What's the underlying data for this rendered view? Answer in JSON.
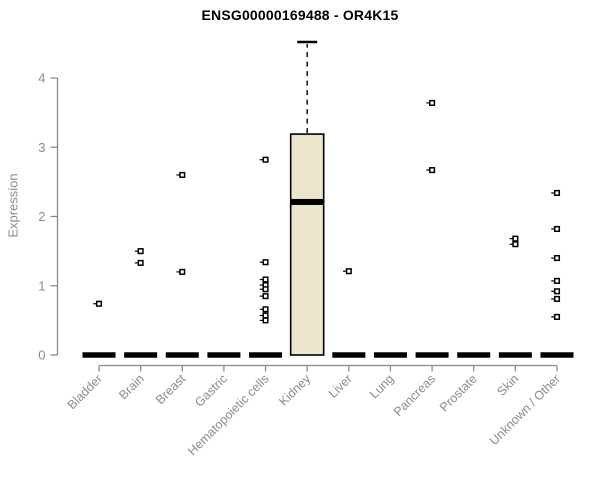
{
  "title": "ENSG00000169488 - OR4K15",
  "colors": {
    "axis": "#8b8b8b",
    "tick_label": "#8b8b8b",
    "title_ink": "#000000",
    "box_fill": "#ebe5cb",
    "box_stroke": "#000000",
    "point_stroke": "#000000",
    "background": "#ffffff"
  },
  "chart_data": {
    "type": "boxplot",
    "title": "ENSG00000169488 - OR4K15",
    "ylabel": "Expression",
    "xlabel": "",
    "ylim": [
      0,
      4.6
    ],
    "yticks": [
      0,
      1,
      2,
      3,
      4
    ],
    "grid": "off",
    "legend": "none",
    "categories": [
      "Bladder",
      "Brain",
      "Breast",
      "Gastric",
      "Hematopoietic cells",
      "Kidney",
      "Liver",
      "Lung",
      "Pancreas",
      "Prostate",
      "Skin",
      "Unknown / Other"
    ],
    "boxes": [
      {
        "category": "Bladder",
        "q1": 0,
        "median": 0,
        "q3": 0,
        "whisker_low": 0,
        "whisker_high": 0,
        "outliers": [
          0.74
        ]
      },
      {
        "category": "Brain",
        "q1": 0,
        "median": 0,
        "q3": 0,
        "whisker_low": 0,
        "whisker_high": 0,
        "outliers": [
          1.5,
          1.33
        ]
      },
      {
        "category": "Breast",
        "q1": 0,
        "median": 0,
        "q3": 0,
        "whisker_low": 0,
        "whisker_high": 0,
        "outliers": [
          2.6,
          1.2
        ]
      },
      {
        "category": "Gastric",
        "q1": 0,
        "median": 0,
        "q3": 0,
        "whisker_low": 0,
        "whisker_high": 0,
        "outliers": []
      },
      {
        "category": "Hematopoietic cells",
        "q1": 0,
        "median": 0,
        "q3": 0,
        "whisker_low": 0,
        "whisker_high": 0,
        "outliers": [
          2.82,
          1.34,
          1.09,
          1.01,
          0.95,
          0.85,
          0.66,
          0.57,
          0.5
        ]
      },
      {
        "category": "Kidney",
        "q1": 0,
        "median": 2.21,
        "q3": 3.19,
        "whisker_low": 0,
        "whisker_high": 4.52,
        "outliers": []
      },
      {
        "category": "Liver",
        "q1": 0,
        "median": 0,
        "q3": 0,
        "whisker_low": 0,
        "whisker_high": 0,
        "outliers": [
          1.21
        ]
      },
      {
        "category": "Lung",
        "q1": 0,
        "median": 0,
        "q3": 0,
        "whisker_low": 0,
        "whisker_high": 0,
        "outliers": []
      },
      {
        "category": "Pancreas",
        "q1": 0,
        "median": 0,
        "q3": 0,
        "whisker_low": 0,
        "whisker_high": 0,
        "outliers": [
          3.64,
          2.67
        ]
      },
      {
        "category": "Prostate",
        "q1": 0,
        "median": 0,
        "q3": 0,
        "whisker_low": 0,
        "whisker_high": 0,
        "outliers": []
      },
      {
        "category": "Skin",
        "q1": 0,
        "median": 0,
        "q3": 0,
        "whisker_low": 0,
        "whisker_high": 0,
        "outliers": [
          1.68,
          1.6
        ]
      },
      {
        "category": "Unknown / Other",
        "q1": 0,
        "median": 0,
        "q3": 0,
        "whisker_low": 0,
        "whisker_high": 0,
        "outliers": [
          2.34,
          1.82,
          1.4,
          1.07,
          0.92,
          0.81,
          0.55
        ]
      }
    ]
  }
}
